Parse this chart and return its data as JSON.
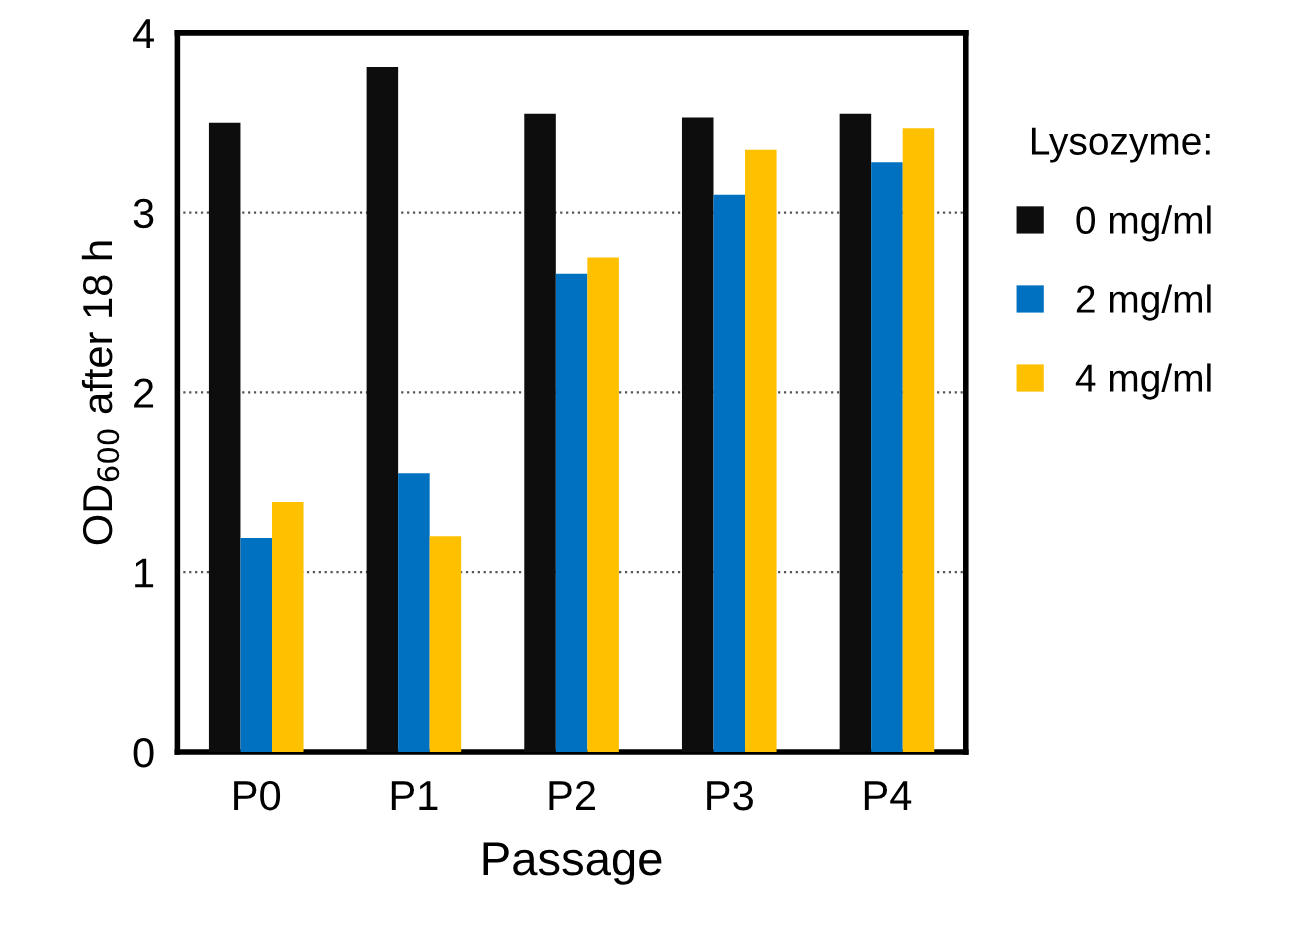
{
  "chart_data": {
    "type": "bar",
    "xlabel": "Passage",
    "ylabel": "OD$_{600}$ after 18 h",
    "legend_title": "Lysozyme:",
    "categories": [
      "P0",
      "P1",
      "P2",
      "P3",
      "P4"
    ],
    "series": [
      {
        "name": "0 mg/ml",
        "color": "#0d0d0d",
        "values": [
          3.5,
          3.81,
          3.55,
          3.53,
          3.55
        ]
      },
      {
        "name": "2 mg/ml",
        "color": "#0070c0",
        "values": [
          1.19,
          1.55,
          2.66,
          3.1,
          3.28
        ]
      },
      {
        "name": "4 mg/ml",
        "color": "#ffc000",
        "values": [
          1.39,
          1.2,
          2.75,
          3.35,
          3.47
        ]
      }
    ],
    "ylim": [
      0,
      4
    ],
    "yticks": [
      0,
      1,
      2,
      3,
      4
    ],
    "grid": "y",
    "legend": "right"
  }
}
